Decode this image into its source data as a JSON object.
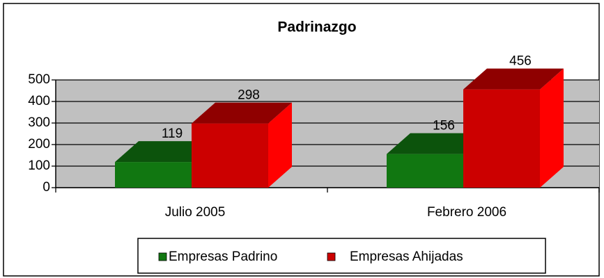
{
  "chart_data": {
    "type": "bar3d",
    "title": "Padrinazgo",
    "categories": [
      "Julio 2005",
      "Febrero 2006"
    ],
    "series": [
      {
        "name": "Empresas Padrino",
        "color": "#117711",
        "values": [
          119,
          156
        ]
      },
      {
        "name": "Empresas Ahijadas",
        "color": "#cc0000",
        "values": [
          298,
          456
        ]
      }
    ],
    "ylim": [
      0,
      500
    ],
    "yticks": [
      0,
      100,
      200,
      300,
      400,
      500
    ],
    "grid": true
  }
}
